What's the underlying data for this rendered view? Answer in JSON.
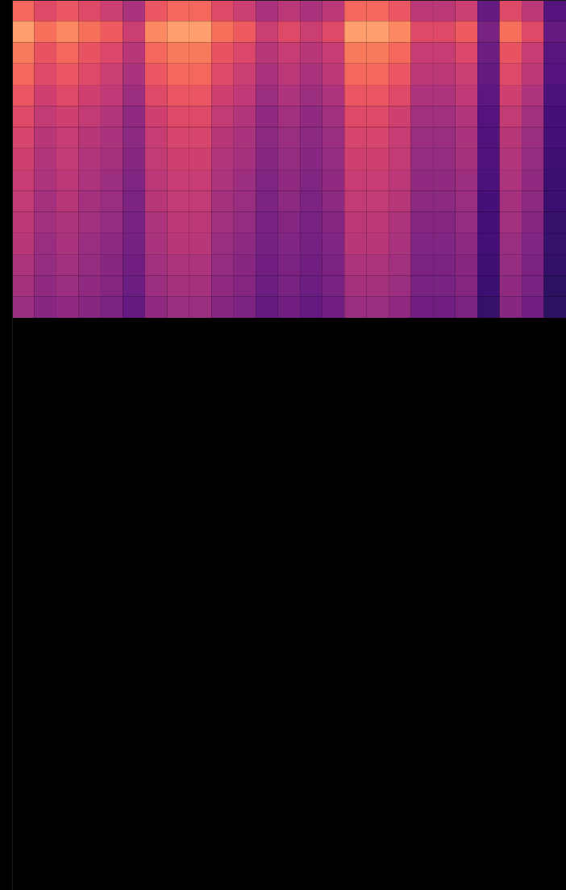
{
  "chart_data": {
    "type": "heatmap",
    "tick_labels": false,
    "color": "magma",
    "color_range": [
      0,
      1
    ],
    "xlim": [
      0,
      25
    ],
    "ylim": [
      0,
      42
    ],
    "cells": [
      [
        0.68,
        0.6,
        0.64,
        0.6,
        0.55,
        0.47,
        0.64,
        0.68,
        0.68,
        0.6,
        0.55,
        0.47,
        0.51,
        0.47,
        0.51,
        0.68,
        0.68,
        0.64,
        0.51,
        0.51,
        0.55,
        0.3,
        0.6,
        0.51,
        0.26
      ],
      [
        0.8,
        0.7,
        0.75,
        0.7,
        0.65,
        0.55,
        0.75,
        0.8,
        0.8,
        0.7,
        0.65,
        0.55,
        0.6,
        0.55,
        0.6,
        0.8,
        0.8,
        0.75,
        0.6,
        0.6,
        0.65,
        0.35,
        0.7,
        0.6,
        0.3
      ],
      [
        0.72,
        0.63,
        0.68,
        0.63,
        0.59,
        0.5,
        0.68,
        0.72,
        0.72,
        0.63,
        0.59,
        0.5,
        0.54,
        0.5,
        0.54,
        0.72,
        0.72,
        0.68,
        0.54,
        0.54,
        0.59,
        0.32,
        0.63,
        0.54,
        0.27
      ],
      [
        0.68,
        0.6,
        0.64,
        0.6,
        0.55,
        0.47,
        0.64,
        0.68,
        0.68,
        0.6,
        0.55,
        0.47,
        0.51,
        0.47,
        0.51,
        0.68,
        0.68,
        0.64,
        0.51,
        0.51,
        0.55,
        0.3,
        0.6,
        0.51,
        0.26
      ],
      [
        0.64,
        0.56,
        0.6,
        0.56,
        0.52,
        0.44,
        0.6,
        0.64,
        0.64,
        0.56,
        0.52,
        0.44,
        0.48,
        0.44,
        0.48,
        0.64,
        0.64,
        0.6,
        0.48,
        0.48,
        0.52,
        0.28,
        0.56,
        0.48,
        0.24
      ],
      [
        0.6,
        0.53,
        0.56,
        0.53,
        0.49,
        0.41,
        0.56,
        0.6,
        0.6,
        0.53,
        0.49,
        0.41,
        0.45,
        0.41,
        0.45,
        0.6,
        0.6,
        0.56,
        0.45,
        0.45,
        0.49,
        0.26,
        0.53,
        0.45,
        0.23
      ],
      [
        0.58,
        0.5,
        0.54,
        0.5,
        0.47,
        0.4,
        0.54,
        0.58,
        0.58,
        0.5,
        0.47,
        0.4,
        0.43,
        0.4,
        0.43,
        0.58,
        0.58,
        0.54,
        0.43,
        0.43,
        0.47,
        0.25,
        0.5,
        0.43,
        0.22
      ],
      [
        0.56,
        0.49,
        0.53,
        0.49,
        0.46,
        0.39,
        0.53,
        0.56,
        0.56,
        0.49,
        0.46,
        0.39,
        0.42,
        0.39,
        0.42,
        0.56,
        0.56,
        0.53,
        0.42,
        0.42,
        0.46,
        0.25,
        0.49,
        0.42,
        0.21
      ],
      [
        0.54,
        0.48,
        0.51,
        0.48,
        0.44,
        0.37,
        0.51,
        0.54,
        0.54,
        0.48,
        0.44,
        0.37,
        0.41,
        0.37,
        0.41,
        0.54,
        0.54,
        0.51,
        0.41,
        0.41,
        0.44,
        0.24,
        0.48,
        0.41,
        0.2
      ],
      [
        0.53,
        0.46,
        0.5,
        0.46,
        0.43,
        0.36,
        0.5,
        0.53,
        0.53,
        0.46,
        0.43,
        0.36,
        0.4,
        0.36,
        0.4,
        0.53,
        0.53,
        0.5,
        0.4,
        0.4,
        0.43,
        0.23,
        0.46,
        0.4,
        0.2
      ],
      [
        0.51,
        0.45,
        0.48,
        0.45,
        0.42,
        0.35,
        0.48,
        0.51,
        0.51,
        0.45,
        0.42,
        0.35,
        0.38,
        0.35,
        0.38,
        0.51,
        0.51,
        0.48,
        0.38,
        0.38,
        0.42,
        0.22,
        0.45,
        0.38,
        0.19
      ],
      [
        0.5,
        0.43,
        0.47,
        0.43,
        0.4,
        0.34,
        0.47,
        0.5,
        0.5,
        0.43,
        0.4,
        0.34,
        0.37,
        0.34,
        0.37,
        0.5,
        0.5,
        0.47,
        0.37,
        0.37,
        0.4,
        0.22,
        0.43,
        0.37,
        0.19
      ],
      [
        0.48,
        0.42,
        0.45,
        0.42,
        0.39,
        0.33,
        0.45,
        0.48,
        0.48,
        0.42,
        0.39,
        0.33,
        0.36,
        0.33,
        0.36,
        0.48,
        0.48,
        0.45,
        0.36,
        0.36,
        0.39,
        0.21,
        0.42,
        0.36,
        0.18
      ],
      [
        0.46,
        0.41,
        0.44,
        0.41,
        0.38,
        0.32,
        0.44,
        0.46,
        0.46,
        0.41,
        0.38,
        0.32,
        0.35,
        0.32,
        0.35,
        0.46,
        0.46,
        0.44,
        0.35,
        0.35,
        0.38,
        0.2,
        0.41,
        0.35,
        0.17
      ],
      [
        0.44,
        0.39,
        0.41,
        0.39,
        0.36,
        0.3,
        0.41,
        0.44,
        0.44,
        0.39,
        0.36,
        0.3,
        0.33,
        0.3,
        0.33,
        0.44,
        0.44,
        0.41,
        0.33,
        0.33,
        0.36,
        0.19,
        0.39,
        0.33,
        0.17
      ]
    ]
  }
}
